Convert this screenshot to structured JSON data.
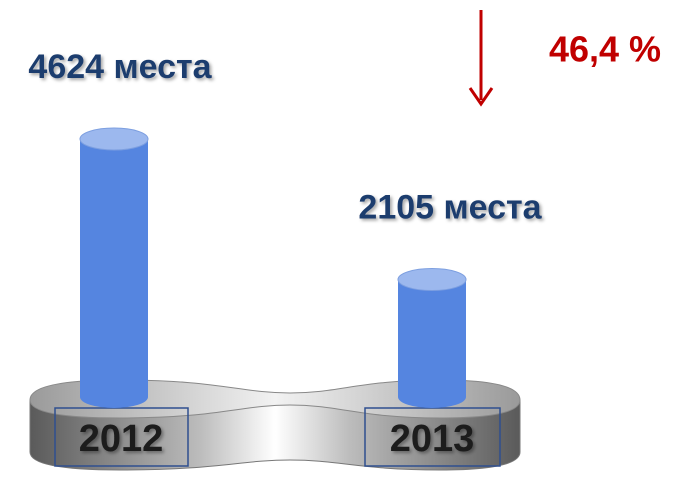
{
  "chart_data": {
    "type": "bar",
    "categories": [
      "2012",
      "2013"
    ],
    "values": [
      4624,
      2105
    ],
    "value_labels": [
      "4624 места",
      "2105 места"
    ],
    "color": "#5585e0",
    "annotation": "46,4 %"
  }
}
